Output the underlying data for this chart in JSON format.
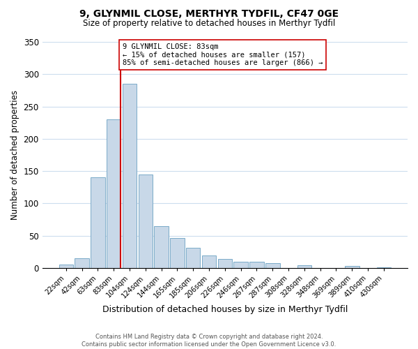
{
  "title": "9, GLYNMIL CLOSE, MERTHYR TYDFIL, CF47 0GE",
  "subtitle": "Size of property relative to detached houses in Merthyr Tydfil",
  "xlabel": "Distribution of detached houses by size in Merthyr Tydfil",
  "ylabel": "Number of detached properties",
  "bar_labels": [
    "22sqm",
    "42sqm",
    "63sqm",
    "83sqm",
    "104sqm",
    "124sqm",
    "144sqm",
    "165sqm",
    "185sqm",
    "206sqm",
    "226sqm",
    "246sqm",
    "267sqm",
    "287sqm",
    "308sqm",
    "328sqm",
    "348sqm",
    "369sqm",
    "389sqm",
    "410sqm",
    "430sqm"
  ],
  "bar_values": [
    5,
    15,
    140,
    230,
    285,
    145,
    65,
    46,
    31,
    20,
    14,
    10,
    10,
    8,
    0,
    4,
    0,
    0,
    3,
    0,
    1
  ],
  "bar_color": "#c8d8e8",
  "bar_edge_color": "#7aaac8",
  "vline_index": 3,
  "vline_color": "#cc0000",
  "annotation_line1": "9 GLYNMIL CLOSE: 83sqm",
  "annotation_line2": "← 15% of detached houses are smaller (157)",
  "annotation_line3": "85% of semi-detached houses are larger (866) →",
  "annotation_box_edgecolor": "#cc0000",
  "annotation_box_facecolor": "#ffffff",
  "ylim": [
    0,
    350
  ],
  "yticks": [
    0,
    50,
    100,
    150,
    200,
    250,
    300,
    350
  ],
  "footer_text": "Contains HM Land Registry data © Crown copyright and database right 2024.\nContains public sector information licensed under the Open Government Licence v3.0.",
  "background_color": "#ffffff",
  "grid_color": "#ccddee"
}
